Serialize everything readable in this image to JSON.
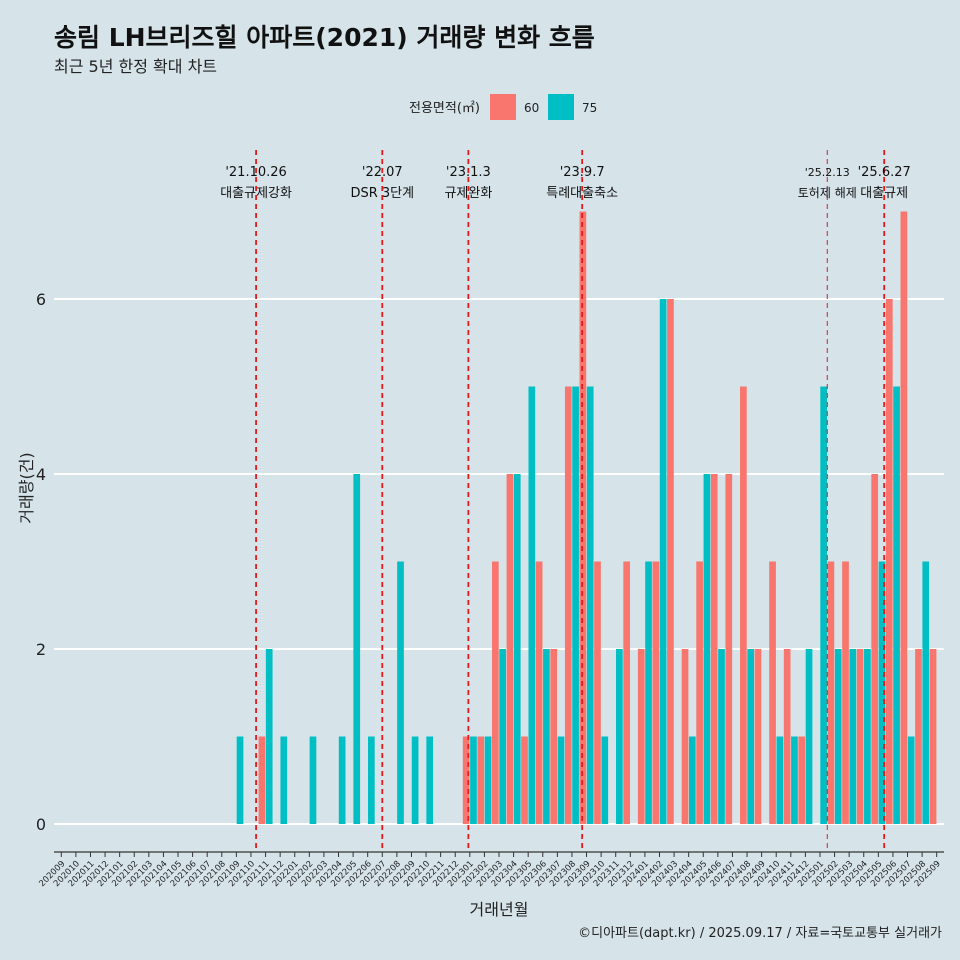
{
  "title": "송림 LH브리즈힐 아파트(2021) 거래량 변화 흐름",
  "subtitle": "최근 5년 한정 확대 차트",
  "caption": "©디아파트(dapt.kr) / 2025.09.17 / 자료=국토교통부 실거래가",
  "colors": {
    "s60": "#f8766d",
    "s75": "#00bfc4",
    "event": "#e41a1c",
    "background": "#d6e4ea",
    "grid": "#ffffff"
  },
  "chart_data": {
    "type": "bar",
    "title": "송림 LH브리즈힐 아파트(2021) 거래량 변화 흐름",
    "xlabel": "거래년월",
    "ylabel": "거래량(건)",
    "ylim": [
      -0.3,
      7.4
    ],
    "yticks": [
      0,
      2,
      4,
      6
    ],
    "legend_title": "전용면적(㎡)",
    "categories": [
      "202009",
      "202010",
      "202011",
      "202012",
      "202101",
      "202102",
      "202103",
      "202104",
      "202105",
      "202106",
      "202107",
      "202108",
      "202109",
      "202110",
      "202111",
      "202112",
      "202201",
      "202202",
      "202203",
      "202204",
      "202205",
      "202206",
      "202207",
      "202208",
      "202209",
      "202210",
      "202211",
      "202212",
      "202301",
      "202302",
      "202303",
      "202304",
      "202305",
      "202306",
      "202307",
      "202308",
      "202309",
      "202310",
      "202311",
      "202312",
      "202401",
      "202402",
      "202403",
      "202404",
      "202405",
      "202406",
      "202407",
      "202408",
      "202409",
      "202410",
      "202411",
      "202412",
      "202501",
      "202502",
      "202503",
      "202504",
      "202505",
      "202506",
      "202507",
      "202508",
      "202509"
    ],
    "series": [
      {
        "name": "60",
        "values": [
          0,
          0,
          0,
          0,
          0,
          0,
          0,
          0,
          0,
          0,
          0,
          0,
          0,
          0,
          1,
          0,
          0,
          0,
          0,
          0,
          0,
          0,
          0,
          0,
          0,
          0,
          0,
          0,
          1,
          1,
          3,
          4,
          1,
          3,
          2,
          5,
          7,
          3,
          0,
          3,
          2,
          3,
          6,
          2,
          3,
          4,
          4,
          5,
          2,
          3,
          2,
          1,
          0,
          3,
          3,
          2,
          4,
          6,
          7,
          2,
          2
        ]
      },
      {
        "name": "75",
        "values": [
          0,
          0,
          0,
          0,
          0,
          0,
          0,
          0,
          0,
          0,
          0,
          0,
          1,
          0,
          2,
          1,
          0,
          1,
          0,
          1,
          4,
          1,
          0,
          3,
          1,
          1,
          0,
          0,
          1,
          1,
          2,
          4,
          5,
          2,
          1,
          5,
          5,
          1,
          2,
          0,
          3,
          6,
          0,
          1,
          4,
          2,
          0,
          2,
          0,
          1,
          1,
          2,
          5,
          2,
          2,
          2,
          3,
          5,
          1,
          3,
          0
        ]
      }
    ],
    "events": [
      {
        "date": "'21.10.26",
        "label": "대출규제강화",
        "index": 13.85
      },
      {
        "date": "'22.07",
        "label": "DSR 3단계",
        "index": 22.5
      },
      {
        "date": "'23.1.3",
        "label": "규제완화",
        "index": 28.4
      },
      {
        "date": "'23.9.7",
        "label": "특례대출축소",
        "index": 36.2
      },
      {
        "date": "'25.2.13",
        "label": "토허제 해제",
        "index": 53.0
      },
      {
        "date": "'25.6.27",
        "label": "대출규제",
        "index": 56.9
      }
    ]
  }
}
